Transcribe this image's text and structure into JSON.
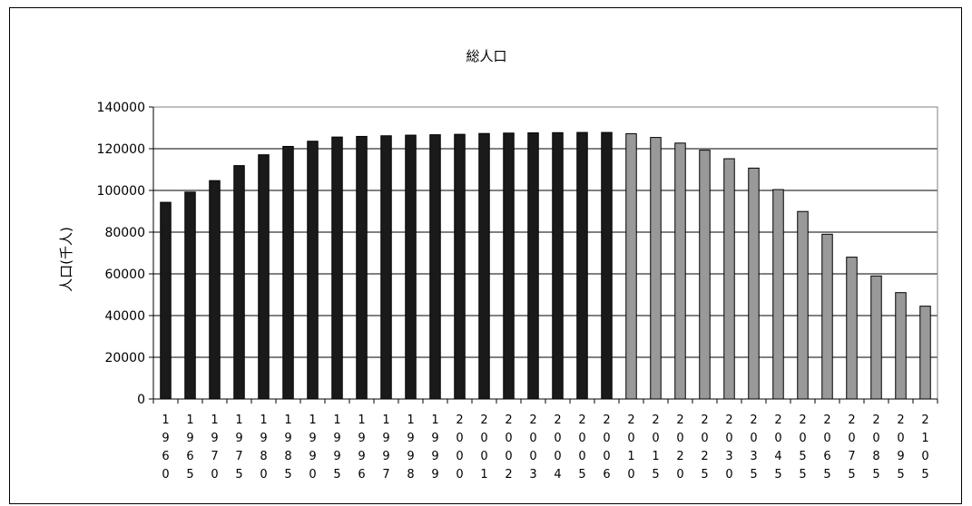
{
  "chart_data": {
    "type": "bar",
    "title": "総人口",
    "xlabel": "",
    "ylabel": "人口(千人)",
    "ylim": [
      0,
      140000
    ],
    "yticks": [
      0,
      20000,
      40000,
      60000,
      80000,
      100000,
      120000,
      140000
    ],
    "grid": true,
    "legend": "none",
    "colors": {
      "actual": "#1a1a1a",
      "projected": "#999999"
    },
    "categories": [
      "1960",
      "1965",
      "1970",
      "1975",
      "1980",
      "1985",
      "1990",
      "1995",
      "1996",
      "1997",
      "1998",
      "1999",
      "2000",
      "2001",
      "2002",
      "2003",
      "2004",
      "2005",
      "2006",
      "2010",
      "2015",
      "2020",
      "2025",
      "2030",
      "2035",
      "2045",
      "2055",
      "2065",
      "2075",
      "2085",
      "2095",
      "2105"
    ],
    "values": [
      94300,
      99200,
      104700,
      111900,
      117100,
      121100,
      123600,
      125600,
      125900,
      126200,
      126500,
      126700,
      126900,
      127300,
      127500,
      127600,
      127700,
      127800,
      127800,
      127200,
      125400,
      122700,
      119300,
      115200,
      110700,
      100400,
      89900,
      79000,
      68000,
      59000,
      51000,
      44500
    ],
    "projected_from_index": 19
  }
}
